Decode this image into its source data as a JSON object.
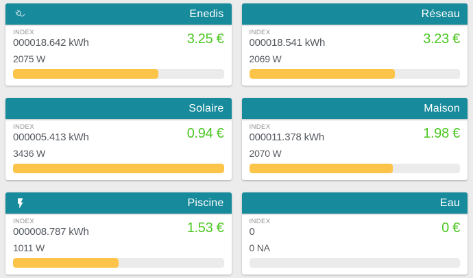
{
  "colors": {
    "header_bg": "#178a9b",
    "price_green": "#4bc621",
    "bar_fill": "#fcc54a",
    "bar_track": "#ebebeb",
    "page_bg": "#ececec",
    "card_bg": "#ffffff",
    "text_primary": "#54595f",
    "text_label": "#8f8f8f"
  },
  "index_label": "INDEX",
  "cards": [
    {
      "title": "Enedis",
      "icon": "power-plug-icon",
      "index_value": "000018.642 kWh",
      "price": "3.25 €",
      "power": "2075 W",
      "bar_percent": 69
    },
    {
      "title": "Réseau",
      "icon": null,
      "index_value": "000018.541 kWh",
      "price": "3.23 €",
      "power": "2069 W",
      "bar_percent": 69
    },
    {
      "title": "Solaire",
      "icon": null,
      "index_value": "000005.413 kWh",
      "price": "0.94 €",
      "power": "3436 W",
      "bar_percent": 100
    },
    {
      "title": "Maison",
      "icon": null,
      "index_value": "000011.378 kWh",
      "price": "1.98 €",
      "power": "2070 W",
      "bar_percent": 68
    },
    {
      "title": "Piscine",
      "icon": "lightning-bolt-icon",
      "index_value": "000008.787 kWh",
      "price": "1.53 €",
      "power": "1011 W",
      "bar_percent": 50
    },
    {
      "title": "Eau",
      "icon": null,
      "index_value": "0",
      "price": "0 €",
      "power": "0 NA",
      "bar_percent": 0
    }
  ]
}
